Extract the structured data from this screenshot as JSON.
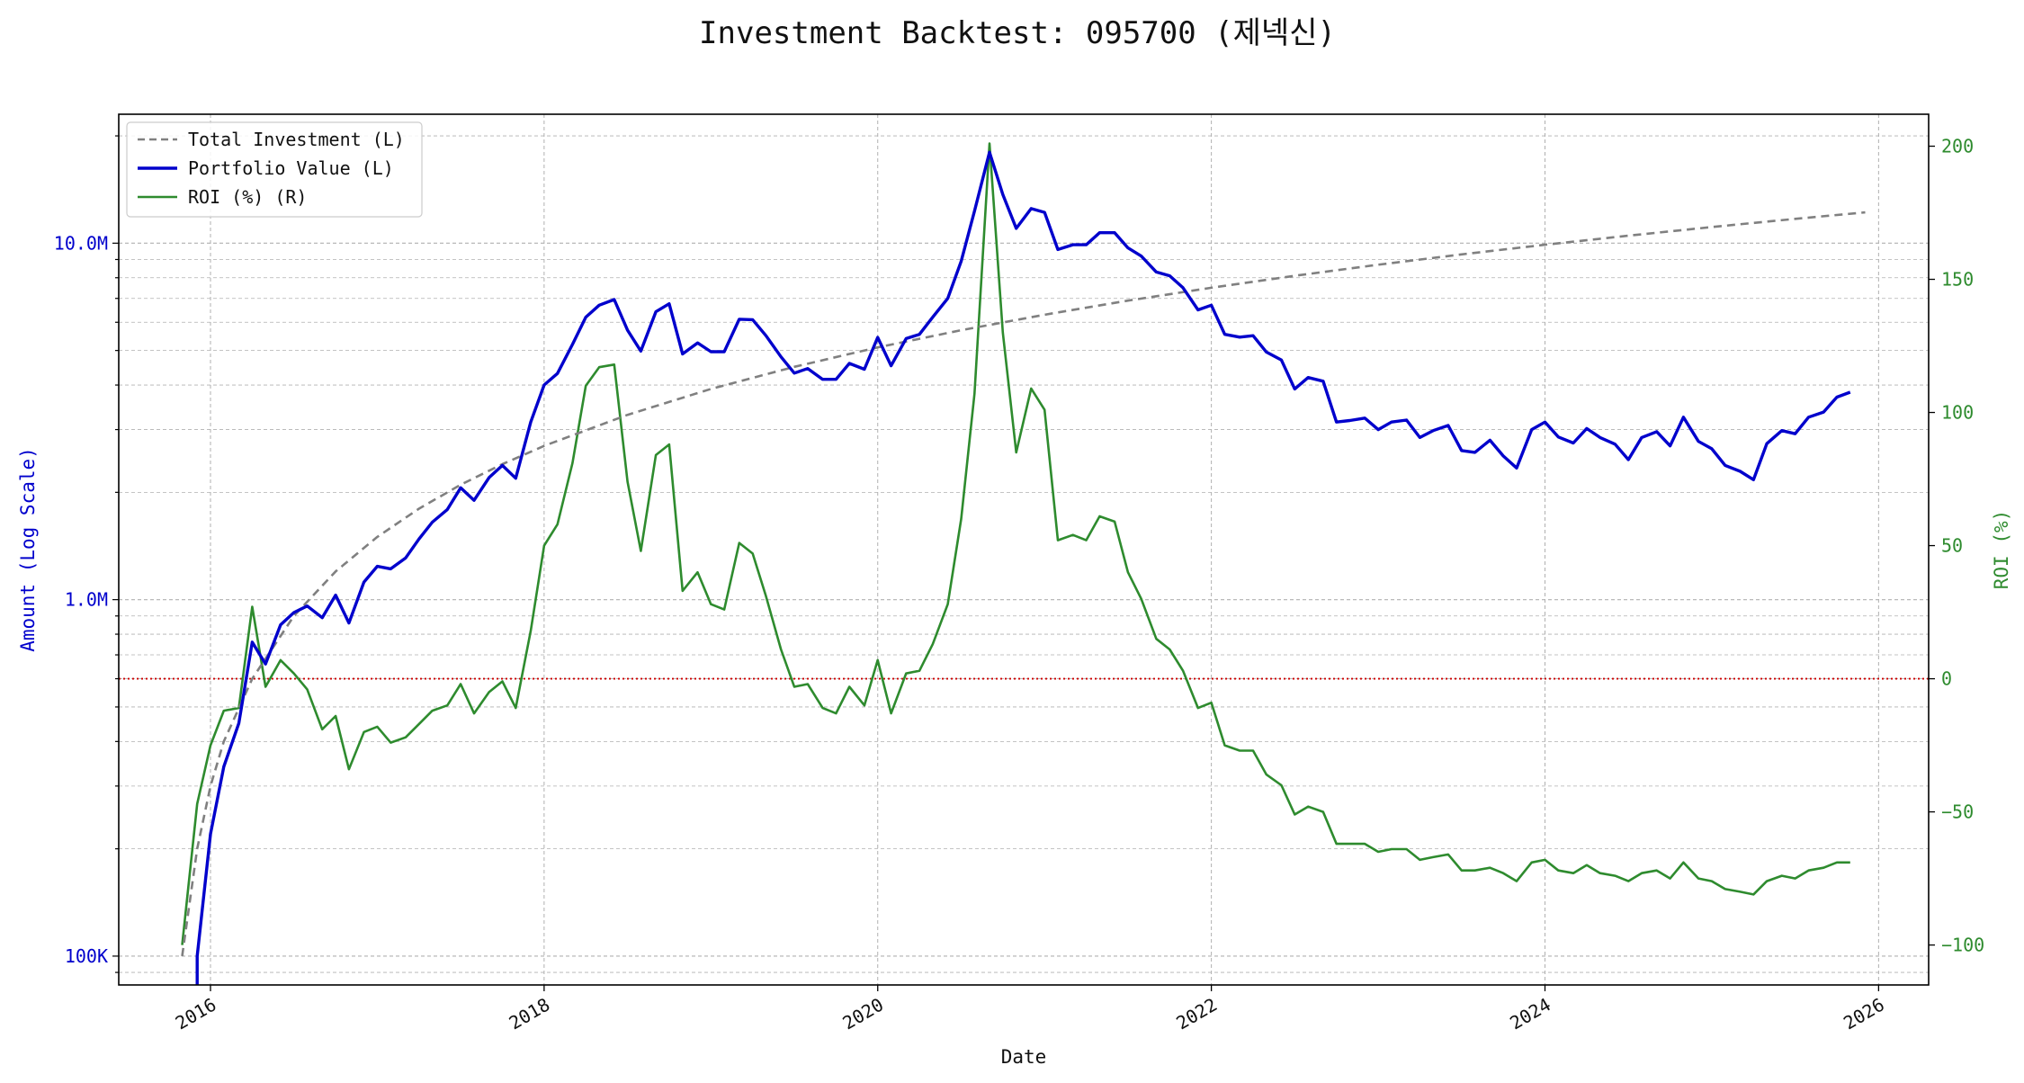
{
  "chart_data": {
    "type": "line",
    "title": "Investment Backtest: 095700 (제넥신)",
    "xlabel": "Date",
    "ylabel_left": "Amount (Log Scale)",
    "ylabel_right": "ROI (%)",
    "left_scale": "log",
    "xlim": [
      2015.45,
      2026.3
    ],
    "ylim_left": [
      83000,
      23000000
    ],
    "ylim_right": [
      -115,
      212
    ],
    "grid": true,
    "legend_position": "top-left",
    "x_ticks": [
      {
        "value": 2016,
        "label": "2016"
      },
      {
        "value": 2018,
        "label": "2018"
      },
      {
        "value": 2020,
        "label": "2020"
      },
      {
        "value": 2022,
        "label": "2022"
      },
      {
        "value": 2024,
        "label": "2024"
      },
      {
        "value": 2026,
        "label": "2026"
      }
    ],
    "y_left_ticks": [
      {
        "value": 100000,
        "label": "100K"
      },
      {
        "value": 1000000,
        "label": "1.0M"
      },
      {
        "value": 10000000,
        "label": "10.0M"
      }
    ],
    "y_right_ticks": [
      {
        "value": -100,
        "label": "−100"
      },
      {
        "value": -50,
        "label": "−50"
      },
      {
        "value": 0,
        "label": "0"
      },
      {
        "value": 50,
        "label": "50"
      },
      {
        "value": 100,
        "label": "100"
      },
      {
        "value": 150,
        "label": "150"
      },
      {
        "value": 200,
        "label": "200"
      }
    ],
    "colors": {
      "total_investment": "#808080",
      "portfolio_value": "#0000cc",
      "roi": "#2e8b2e",
      "zero_line": "#cc0000",
      "left_axis_text": "#0000cc",
      "right_axis_text": "#2e8b2e",
      "grid": "#b0b0b0"
    },
    "series": [
      {
        "name": "Total Investment (L)",
        "axis": "left",
        "style": "dashed",
        "points": [
          [
            2015.83,
            100000
          ],
          [
            2015.92,
            200000
          ],
          [
            2016.0,
            300000
          ],
          [
            2016.08,
            400000
          ],
          [
            2016.25,
            600000
          ],
          [
            2016.5,
            900000
          ],
          [
            2016.75,
            1200000
          ],
          [
            2017.0,
            1500000
          ],
          [
            2017.25,
            1800000
          ],
          [
            2017.5,
            2100000
          ],
          [
            2017.75,
            2400000
          ],
          [
            2018.0,
            2700000
          ],
          [
            2018.5,
            3300000
          ],
          [
            2019.0,
            3900000
          ],
          [
            2019.5,
            4500000
          ],
          [
            2020.0,
            5100000
          ],
          [
            2020.5,
            5700000
          ],
          [
            2021.0,
            6300000
          ],
          [
            2021.5,
            6900000
          ],
          [
            2022.0,
            7500000
          ],
          [
            2022.5,
            8100000
          ],
          [
            2023.0,
            8700000
          ],
          [
            2023.5,
            9300000
          ],
          [
            2024.0,
            9900000
          ],
          [
            2024.5,
            10500000
          ],
          [
            2025.0,
            11100000
          ],
          [
            2025.5,
            11700000
          ],
          [
            2025.92,
            12200000
          ]
        ]
      },
      {
        "name": "Portfolio Value (L)",
        "axis": "left",
        "style": "solid",
        "points": [
          [
            2015.92,
            80000
          ],
          [
            2015.92,
            100000
          ],
          [
            2016.0,
            220000
          ],
          [
            2016.08,
            340000
          ],
          [
            2016.17,
            450000
          ],
          [
            2016.25,
            760000
          ],
          [
            2016.33,
            660000
          ],
          [
            2016.42,
            850000
          ],
          [
            2016.5,
            920000
          ],
          [
            2016.58,
            960000
          ],
          [
            2016.67,
            890000
          ],
          [
            2016.75,
            1030000
          ],
          [
            2016.83,
            860000
          ],
          [
            2016.92,
            1120000
          ],
          [
            2017.0,
            1240000
          ],
          [
            2017.08,
            1220000
          ],
          [
            2017.17,
            1310000
          ],
          [
            2017.25,
            1480000
          ],
          [
            2017.33,
            1650000
          ],
          [
            2017.42,
            1790000
          ],
          [
            2017.5,
            2060000
          ],
          [
            2017.58,
            1900000
          ],
          [
            2017.67,
            2200000
          ],
          [
            2017.75,
            2380000
          ],
          [
            2017.83,
            2190000
          ],
          [
            2017.92,
            3150000
          ],
          [
            2018.0,
            4000000
          ],
          [
            2018.08,
            4310000
          ],
          [
            2018.17,
            5200000
          ],
          [
            2018.25,
            6200000
          ],
          [
            2018.33,
            6700000
          ],
          [
            2018.42,
            6950000
          ],
          [
            2018.5,
            5700000
          ],
          [
            2018.58,
            4980000
          ],
          [
            2018.67,
            6420000
          ],
          [
            2018.75,
            6760000
          ],
          [
            2018.83,
            4890000
          ],
          [
            2018.92,
            5250000
          ],
          [
            2019.0,
            4960000
          ],
          [
            2019.08,
            4960000
          ],
          [
            2019.17,
            6120000
          ],
          [
            2019.25,
            6100000
          ],
          [
            2019.33,
            5500000
          ],
          [
            2019.42,
            4800000
          ],
          [
            2019.5,
            4320000
          ],
          [
            2019.58,
            4450000
          ],
          [
            2019.67,
            4150000
          ],
          [
            2019.75,
            4150000
          ],
          [
            2019.83,
            4600000
          ],
          [
            2019.92,
            4430000
          ],
          [
            2020.0,
            5440000
          ],
          [
            2020.08,
            4530000
          ],
          [
            2020.17,
            5400000
          ],
          [
            2020.25,
            5550000
          ],
          [
            2020.33,
            6200000
          ],
          [
            2020.42,
            7000000
          ],
          [
            2020.5,
            8900000
          ],
          [
            2020.58,
            12300000
          ],
          [
            2020.67,
            18000000
          ],
          [
            2020.75,
            13700000
          ],
          [
            2020.83,
            11000000
          ],
          [
            2020.92,
            12500000
          ],
          [
            2021.0,
            12200000
          ],
          [
            2021.08,
            9600000
          ],
          [
            2021.17,
            9900000
          ],
          [
            2021.25,
            9900000
          ],
          [
            2021.33,
            10700000
          ],
          [
            2021.42,
            10700000
          ],
          [
            2021.5,
            9700000
          ],
          [
            2021.58,
            9200000
          ],
          [
            2021.67,
            8300000
          ],
          [
            2021.75,
            8100000
          ],
          [
            2021.83,
            7500000
          ],
          [
            2021.92,
            6500000
          ],
          [
            2022.0,
            6700000
          ],
          [
            2022.08,
            5550000
          ],
          [
            2022.17,
            5450000
          ],
          [
            2022.25,
            5500000
          ],
          [
            2022.33,
            4950000
          ],
          [
            2022.42,
            4700000
          ],
          [
            2022.5,
            3900000
          ],
          [
            2022.58,
            4200000
          ],
          [
            2022.67,
            4100000
          ],
          [
            2022.75,
            3150000
          ],
          [
            2022.83,
            3180000
          ],
          [
            2022.92,
            3230000
          ],
          [
            2023.0,
            3000000
          ],
          [
            2023.08,
            3150000
          ],
          [
            2023.17,
            3190000
          ],
          [
            2023.25,
            2850000
          ],
          [
            2023.33,
            2980000
          ],
          [
            2023.42,
            3080000
          ],
          [
            2023.5,
            2620000
          ],
          [
            2023.58,
            2590000
          ],
          [
            2023.67,
            2800000
          ],
          [
            2023.75,
            2530000
          ],
          [
            2023.83,
            2340000
          ],
          [
            2023.92,
            3000000
          ],
          [
            2024.0,
            3150000
          ],
          [
            2024.08,
            2860000
          ],
          [
            2024.17,
            2750000
          ],
          [
            2024.25,
            3020000
          ],
          [
            2024.33,
            2850000
          ],
          [
            2024.42,
            2730000
          ],
          [
            2024.5,
            2470000
          ],
          [
            2024.58,
            2850000
          ],
          [
            2024.67,
            2960000
          ],
          [
            2024.75,
            2700000
          ],
          [
            2024.83,
            3250000
          ],
          [
            2024.92,
            2780000
          ],
          [
            2025.0,
            2650000
          ],
          [
            2025.08,
            2380000
          ],
          [
            2025.17,
            2290000
          ],
          [
            2025.25,
            2170000
          ],
          [
            2025.33,
            2740000
          ],
          [
            2025.42,
            2980000
          ],
          [
            2025.5,
            2920000
          ],
          [
            2025.58,
            3250000
          ],
          [
            2025.67,
            3360000
          ],
          [
            2025.75,
            3700000
          ],
          [
            2025.83,
            3820000
          ]
        ]
      },
      {
        "name": "ROI (%) (R)",
        "axis": "right",
        "style": "solid",
        "points": [
          [
            2015.83,
            -100
          ],
          [
            2015.92,
            -47
          ],
          [
            2016.0,
            -25
          ],
          [
            2016.08,
            -12
          ],
          [
            2016.17,
            -11
          ],
          [
            2016.25,
            27
          ],
          [
            2016.33,
            -3
          ],
          [
            2016.42,
            7
          ],
          [
            2016.5,
            2
          ],
          [
            2016.58,
            -4
          ],
          [
            2016.67,
            -19
          ],
          [
            2016.75,
            -14
          ],
          [
            2016.83,
            -34
          ],
          [
            2016.92,
            -20
          ],
          [
            2017.0,
            -18
          ],
          [
            2017.08,
            -24
          ],
          [
            2017.17,
            -22
          ],
          [
            2017.25,
            -17
          ],
          [
            2017.33,
            -12
          ],
          [
            2017.42,
            -10
          ],
          [
            2017.5,
            -2
          ],
          [
            2017.58,
            -13
          ],
          [
            2017.67,
            -5
          ],
          [
            2017.75,
            -1
          ],
          [
            2017.83,
            -11
          ],
          [
            2017.92,
            18
          ],
          [
            2018.0,
            50
          ],
          [
            2018.08,
            58
          ],
          [
            2018.17,
            81
          ],
          [
            2018.25,
            110
          ],
          [
            2018.33,
            117
          ],
          [
            2018.42,
            118
          ],
          [
            2018.5,
            74
          ],
          [
            2018.58,
            48
          ],
          [
            2018.67,
            84
          ],
          [
            2018.75,
            88
          ],
          [
            2018.83,
            33
          ],
          [
            2018.92,
            40
          ],
          [
            2019.0,
            28
          ],
          [
            2019.08,
            26
          ],
          [
            2019.17,
            51
          ],
          [
            2019.25,
            47
          ],
          [
            2019.33,
            31
          ],
          [
            2019.42,
            11
          ],
          [
            2019.5,
            -3
          ],
          [
            2019.58,
            -2
          ],
          [
            2019.67,
            -11
          ],
          [
            2019.75,
            -13
          ],
          [
            2019.83,
            -3
          ],
          [
            2019.92,
            -10
          ],
          [
            2020.0,
            7
          ],
          [
            2020.08,
            -13
          ],
          [
            2020.17,
            2
          ],
          [
            2020.25,
            3
          ],
          [
            2020.33,
            13
          ],
          [
            2020.42,
            28
          ],
          [
            2020.5,
            60
          ],
          [
            2020.58,
            107
          ],
          [
            2020.67,
            201
          ],
          [
            2020.75,
            130
          ],
          [
            2020.83,
            85
          ],
          [
            2020.92,
            109
          ],
          [
            2021.0,
            101
          ],
          [
            2021.08,
            52
          ],
          [
            2021.17,
            54
          ],
          [
            2021.25,
            52
          ],
          [
            2021.33,
            61
          ],
          [
            2021.42,
            59
          ],
          [
            2021.5,
            40
          ],
          [
            2021.58,
            30
          ],
          [
            2021.67,
            15
          ],
          [
            2021.75,
            11
          ],
          [
            2021.83,
            3
          ],
          [
            2021.92,
            -11
          ],
          [
            2022.0,
            -9
          ],
          [
            2022.08,
            -25
          ],
          [
            2022.17,
            -27
          ],
          [
            2022.25,
            -27
          ],
          [
            2022.33,
            -36
          ],
          [
            2022.42,
            -40
          ],
          [
            2022.5,
            -51
          ],
          [
            2022.58,
            -48
          ],
          [
            2022.67,
            -50
          ],
          [
            2022.75,
            -62
          ],
          [
            2022.83,
            -62
          ],
          [
            2022.92,
            -62
          ],
          [
            2023.0,
            -65
          ],
          [
            2023.08,
            -64
          ],
          [
            2023.17,
            -64
          ],
          [
            2023.25,
            -68
          ],
          [
            2023.33,
            -67
          ],
          [
            2023.42,
            -66
          ],
          [
            2023.5,
            -72
          ],
          [
            2023.58,
            -72
          ],
          [
            2023.67,
            -71
          ],
          [
            2023.75,
            -73
          ],
          [
            2023.83,
            -76
          ],
          [
            2023.92,
            -69
          ],
          [
            2024.0,
            -68
          ],
          [
            2024.08,
            -72
          ],
          [
            2024.17,
            -73
          ],
          [
            2024.25,
            -70
          ],
          [
            2024.33,
            -73
          ],
          [
            2024.42,
            -74
          ],
          [
            2024.5,
            -76
          ],
          [
            2024.58,
            -73
          ],
          [
            2024.67,
            -72
          ],
          [
            2024.75,
            -75
          ],
          [
            2024.83,
            -69
          ],
          [
            2024.92,
            -75
          ],
          [
            2025.0,
            -76
          ],
          [
            2025.08,
            -79
          ],
          [
            2025.17,
            -80
          ],
          [
            2025.25,
            -81
          ],
          [
            2025.33,
            -76
          ],
          [
            2025.42,
            -74
          ],
          [
            2025.5,
            -75
          ],
          [
            2025.58,
            -72
          ],
          [
            2025.67,
            -71
          ],
          [
            2025.75,
            -69
          ],
          [
            2025.83,
            -69
          ]
        ]
      }
    ]
  }
}
